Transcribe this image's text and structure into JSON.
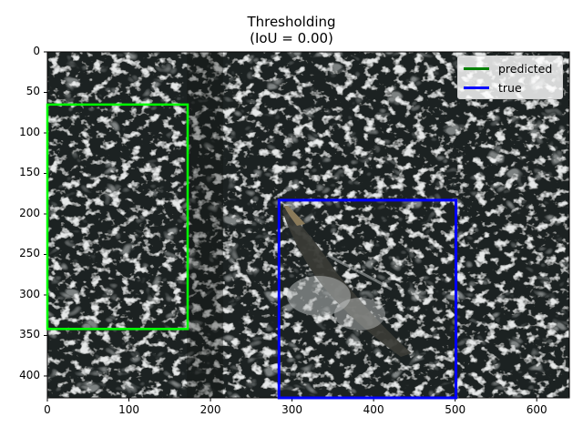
{
  "figure": {
    "title_line1": "Thresholding",
    "title_line2": "(IoU = 0.00)"
  },
  "axes": {
    "x_ticks": [
      "0",
      "100",
      "200",
      "300",
      "400",
      "500",
      "600"
    ],
    "y_ticks": [
      "0",
      "50",
      "100",
      "150",
      "200",
      "250",
      "300",
      "350",
      "400"
    ],
    "xlim": [
      0,
      640
    ],
    "ylim": [
      427,
      0
    ]
  },
  "legend": {
    "placement": "top-right",
    "items": [
      {
        "label": "predicted",
        "color": "#008000"
      },
      {
        "label": "true",
        "color": "#0000ff"
      }
    ]
  },
  "boxes": {
    "predicted": {
      "color": "#00ff00",
      "x1": 0,
      "y1": 65,
      "x2": 172,
      "y2": 342
    },
    "true": {
      "color": "#0000ff",
      "x1": 284,
      "y1": 183,
      "x2": 501,
      "y2": 427
    }
  },
  "image": {
    "description_icon": "satellite-ocean-texture",
    "colors": {
      "water_dark": "#1c2420",
      "foam": "#b8bcbc",
      "animal": "#3a3b36"
    }
  }
}
